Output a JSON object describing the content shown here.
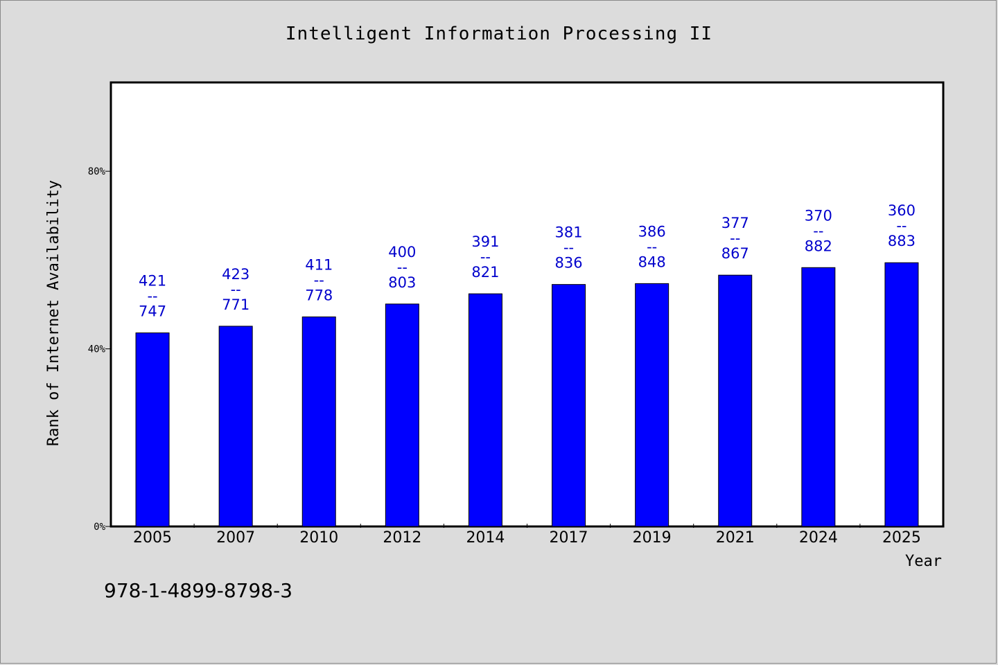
{
  "chart_title": "Intelligent Information Processing II",
  "footer_text": "978-1-4899-8798-3",
  "chart_data": {
    "type": "bar",
    "title": "Intelligent Information Processing II",
    "xlabel": "Year",
    "ylabel": "Rank of Internet Availability",
    "ylim": [
      0,
      100
    ],
    "yticks": [
      0,
      40,
      80
    ],
    "ytick_labels": [
      "0%",
      "40%",
      "80%"
    ],
    "categories": [
      "2005",
      "2007",
      "2010",
      "2012",
      "2014",
      "2017",
      "2019",
      "2021",
      "2024",
      "2025"
    ],
    "values": [
      43.6,
      45.1,
      47.2,
      50.1,
      52.4,
      54.5,
      54.7,
      56.6,
      58.3,
      59.4
    ],
    "data_labels": [
      {
        "top": "421",
        "sep": "--",
        "bottom": "747"
      },
      {
        "top": "423",
        "sep": "--",
        "bottom": "771"
      },
      {
        "top": "411",
        "sep": "--",
        "bottom": "778"
      },
      {
        "top": "400",
        "sep": "--",
        "bottom": "803"
      },
      {
        "top": "391",
        "sep": "--",
        "bottom": "821"
      },
      {
        "top": "381",
        "sep": "--",
        "bottom": "836"
      },
      {
        "top": "386",
        "sep": "--",
        "bottom": "848"
      },
      {
        "top": "377",
        "sep": "--",
        "bottom": "867"
      },
      {
        "top": "370",
        "sep": "--",
        "bottom": "882"
      },
      {
        "top": "360",
        "sep": "--",
        "bottom": "883"
      }
    ],
    "bar_color": "#0000ff",
    "label_color": "#0000cc",
    "grid": false,
    "legend": "none"
  }
}
